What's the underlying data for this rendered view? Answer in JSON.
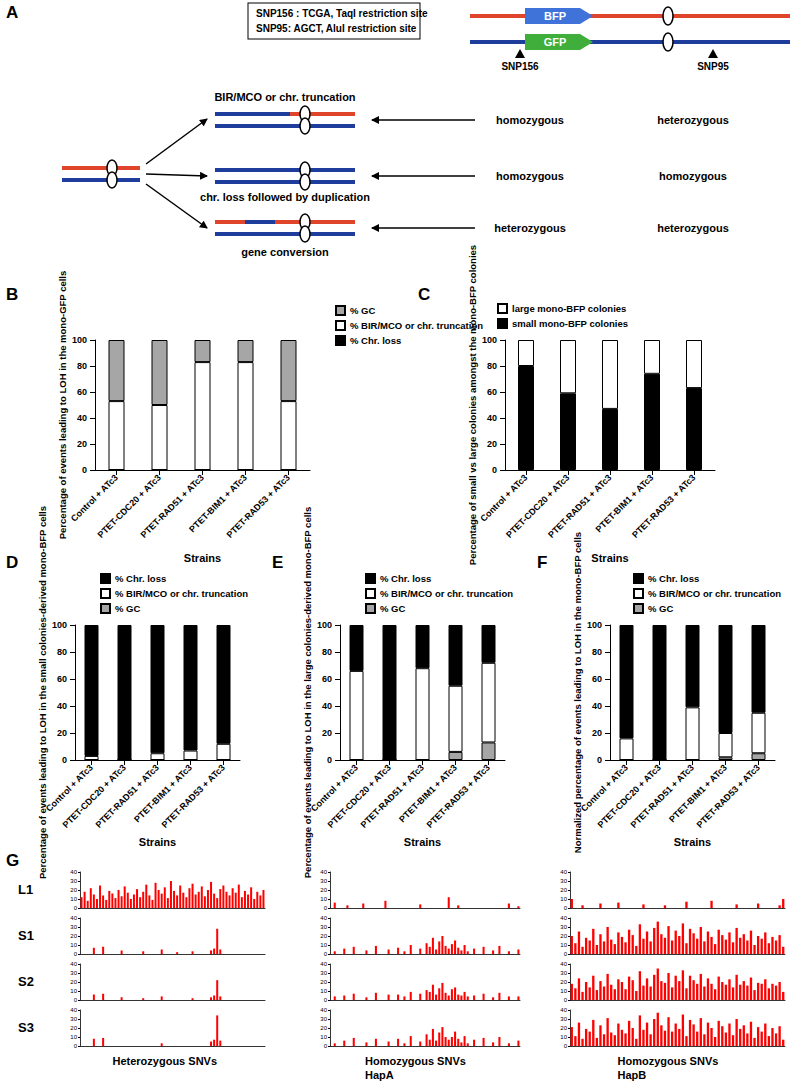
{
  "panel_a": {
    "panel": "A",
    "snp_box": [
      "SNP156 : TCGA, TaqI restriction site",
      "SNP95: AGCT, AluI restriction site"
    ],
    "colors": [
      "#e0452b",
      "#1f3d9c"
    ],
    "genes": [
      {
        "label": "BFP",
        "color": "#3f73d9"
      },
      {
        "label": "GFP",
        "color": "#3fae3a"
      }
    ],
    "snps": [
      "SNP156",
      "SNP95"
    ],
    "outcomes": [
      {
        "label": "BIR/MCO or chr. truncation",
        "top": [
          "#1f3d9c",
          "#e0452b"
        ],
        "snp156": "homozygous",
        "snp95": "heterozygous"
      },
      {
        "label": "chr. loss followed by duplication",
        "top": [
          "#1f3d9c"
        ],
        "snp156": "homozygous",
        "snp95": "homozygous"
      },
      {
        "label": "gene conversion",
        "top": [
          "#e0452b",
          "#1f3d9c",
          "#e0452b"
        ],
        "snp156": "heterozygous",
        "snp95": "heterozygous"
      }
    ]
  },
  "chart_data": [
    {
      "panel": "B",
      "type": "bar",
      "stacked": true,
      "ylabel": "Percentage of events leading to LOH in the mono-GFP cells",
      "xlabel": "Strains",
      "categories": [
        "Control + ATc3",
        "PTET-CDC20 + ATc3",
        "PTET-RAD51 + ATc3",
        "PTET-BIM1 + ATc3",
        "PTET-RAD53 + ATc3"
      ],
      "series": [
        {
          "name": "% Chr. loss",
          "color": "#000000",
          "values": [
            0,
            0,
            0,
            0,
            0
          ]
        },
        {
          "name": "% BIR/MCO or chr. truncation",
          "color": "#ffffff",
          "values": [
            53,
            50,
            83,
            83,
            53
          ]
        },
        {
          "name": "% GC",
          "color": "#a6a6a6",
          "values": [
            47,
            50,
            17,
            17,
            47
          ]
        }
      ],
      "ylim": [
        0,
        100
      ],
      "yticks": [
        0,
        20,
        40,
        60,
        80,
        100
      ],
      "grid": false,
      "legend": "top-right"
    },
    {
      "panel": "C",
      "type": "bar",
      "stacked": true,
      "ylabel": "Percentage of small vs large colonies amongst the mono-BFP colonies",
      "xlabel": "Strains",
      "categories": [
        "Control + ATc3",
        "PTET-CDC20 + ATc3",
        "PTET-RAD51 + ATc3",
        "PTET-BIM1 + ATc3",
        "PTET-RAD53 + ATc3"
      ],
      "series": [
        {
          "name": "small mono-BFP colonies",
          "color": "#000000",
          "values": [
            80,
            59,
            47,
            74,
            63
          ]
        },
        {
          "name": "large mono-BFP colonies",
          "color": "#ffffff",
          "values": [
            20,
            41,
            53,
            26,
            37
          ]
        }
      ],
      "ylim": [
        0,
        100
      ],
      "yticks": [
        0,
        20,
        40,
        60,
        80,
        100
      ],
      "grid": false,
      "legend": "top"
    },
    {
      "panel": "D",
      "type": "bar",
      "stacked": true,
      "ylabel": "Percentage of events leading to LOH in the small colonies-derived mono-BFP cells",
      "xlabel": "Strains",
      "categories": [
        "Control + ATc3",
        "PTET-CDC20 + ATc3",
        "PTET-RAD51 + ATc3",
        "PTET-BIM1 + ATc3",
        "PTET-RAD53 + ATc3"
      ],
      "series": [
        {
          "name": "% GC",
          "color": "#a6a6a6",
          "values": [
            0,
            0,
            0,
            0,
            0
          ]
        },
        {
          "name": "% BIR/MCO or chr. truncation",
          "color": "#ffffff",
          "values": [
            3,
            0,
            5,
            7,
            12
          ]
        },
        {
          "name": "% Chr. loss",
          "color": "#000000",
          "values": [
            97,
            100,
            95,
            93,
            88
          ]
        }
      ],
      "ylim": [
        0,
        100
      ],
      "yticks": [
        0,
        20,
        40,
        60,
        80,
        100
      ],
      "grid": false,
      "legend": "top"
    },
    {
      "panel": "E",
      "type": "bar",
      "stacked": true,
      "ylabel": "Percentage of events leading to LOH in the large colonies-derived mono-BFP cells",
      "xlabel": "Strains",
      "categories": [
        "Control + ATc3",
        "PTET-CDC20 + ATc3",
        "PTET-RAD51 + ATc3",
        "PTET-BIM1 + ATc3",
        "PTET-RAD53 + ATc3"
      ],
      "series": [
        {
          "name": "% GC",
          "color": "#a6a6a6",
          "values": [
            0,
            0,
            0,
            6,
            13
          ]
        },
        {
          "name": "% BIR/MCO or chr. truncation",
          "color": "#ffffff",
          "values": [
            66,
            0,
            68,
            49,
            59
          ]
        },
        {
          "name": "% Chr. loss",
          "color": "#000000",
          "values": [
            34,
            100,
            32,
            45,
            28
          ]
        }
      ],
      "ylim": [
        0,
        100
      ],
      "yticks": [
        0,
        20,
        40,
        60,
        80,
        100
      ],
      "grid": false,
      "legend": "top"
    },
    {
      "panel": "F",
      "type": "bar",
      "stacked": true,
      "ylabel": "Normalized percentage of events leading to LOH in the mono-BFP cells",
      "xlabel": "Strains",
      "categories": [
        "Control + ATc3",
        "PTET-CDC20 + ATc3",
        "PTET-RAD51 + ATc3",
        "PTET-BIM1 + ATc3",
        "PTET-RAD53 + ATc3"
      ],
      "series": [
        {
          "name": "% GC",
          "color": "#a6a6a6",
          "values": [
            0,
            0,
            0,
            2,
            5
          ]
        },
        {
          "name": "% BIR/MCO or chr. truncation",
          "color": "#ffffff",
          "values": [
            16,
            0,
            39,
            18,
            30
          ]
        },
        {
          "name": "% Chr. loss",
          "color": "#000000",
          "values": [
            84,
            100,
            61,
            80,
            65
          ]
        }
      ],
      "ylim": [
        0,
        100
      ],
      "yticks": [
        0,
        20,
        40,
        60,
        80,
        100
      ],
      "grid": false,
      "legend": "top"
    }
  ],
  "panel_g": {
    "panel": "G",
    "type": "bar",
    "color": "#ff0000",
    "ylim": [
      0,
      40
    ],
    "yticks": [
      0,
      10,
      20,
      30,
      40
    ],
    "tick_labels": "y",
    "columns": [
      "Heterozygous SNVs",
      "Homozygous SNVs HapA",
      "Homozygous SNVs HapB"
    ],
    "rows": [
      {
        "label": "L1",
        "tracks": [
          [
            12,
            18,
            8,
            22,
            15,
            10,
            25,
            14,
            9,
            19,
            16,
            11,
            20,
            13,
            24,
            17,
            10,
            15,
            21,
            12,
            18,
            26,
            14,
            9,
            28,
            20,
            16,
            23,
            11,
            30,
            19,
            14,
            25,
            17,
            12,
            22,
            27,
            15,
            18,
            24,
            13,
            20,
            29,
            16,
            11,
            21,
            25,
            18,
            14,
            22,
            17,
            26,
            12,
            19,
            15,
            23,
            10,
            18,
            14,
            20
          ],
          [
            0,
            6,
            0,
            0,
            0,
            3,
            0,
            0,
            0,
            0,
            5,
            0,
            0,
            0,
            0,
            0,
            0,
            8,
            0,
            0,
            0,
            0,
            0,
            0,
            0,
            0,
            0,
            0,
            4,
            0,
            0,
            0,
            0,
            0,
            0,
            0,
            0,
            12,
            0,
            0,
            3,
            0,
            0,
            0,
            0,
            0,
            0,
            0,
            0,
            0,
            0,
            0,
            0,
            0,
            0,
            0,
            5,
            0,
            0,
            2
          ],
          [
            10,
            0,
            0,
            3,
            0,
            0,
            0,
            0,
            5,
            0,
            0,
            0,
            0,
            6,
            0,
            0,
            0,
            0,
            0,
            0,
            4,
            0,
            0,
            0,
            0,
            0,
            3,
            0,
            0,
            0,
            0,
            0,
            7,
            0,
            0,
            0,
            0,
            0,
            0,
            8,
            0,
            0,
            0,
            0,
            0,
            0,
            4,
            0,
            0,
            0,
            0,
            0,
            5,
            0,
            0,
            0,
            0,
            0,
            3,
            10
          ]
        ]
      },
      {
        "label": "S1",
        "tracks": [
          [
            0,
            0,
            0,
            0,
            7,
            0,
            0,
            8,
            0,
            0,
            0,
            0,
            0,
            4,
            0,
            0,
            0,
            0,
            0,
            0,
            3,
            0,
            0,
            0,
            0,
            0,
            5,
            0,
            0,
            0,
            0,
            2,
            0,
            0,
            0,
            0,
            3,
            0,
            0,
            0,
            0,
            0,
            4,
            6,
            28,
            5,
            0,
            0,
            0,
            0,
            0,
            0,
            0,
            0,
            0,
            0,
            0,
            0,
            0,
            0
          ],
          [
            0,
            3,
            0,
            0,
            6,
            0,
            0,
            8,
            0,
            0,
            0,
            4,
            0,
            0,
            9,
            0,
            0,
            0,
            5,
            0,
            0,
            7,
            0,
            3,
            0,
            10,
            0,
            0,
            6,
            0,
            12,
            8,
            18,
            5,
            14,
            20,
            9,
            6,
            11,
            15,
            7,
            4,
            10,
            3,
            0,
            6,
            0,
            0,
            8,
            0,
            0,
            4,
            0,
            9,
            0,
            0,
            3,
            0,
            0,
            5
          ],
          [
            20,
            12,
            25,
            8,
            18,
            15,
            28,
            10,
            22,
            14,
            30,
            16,
            11,
            24,
            19,
            13,
            27,
            21,
            9,
            33,
            17,
            25,
            14,
            29,
            36,
            22,
            18,
            31,
            15,
            26,
            20,
            34,
            12,
            28,
            23,
            17,
            30,
            14,
            25,
            19,
            11,
            27,
            21,
            16,
            24,
            13,
            29,
            18,
            22,
            15,
            26,
            10,
            20,
            17,
            24,
            12,
            19,
            15,
            21,
            8
          ]
        ]
      },
      {
        "label": "S2",
        "tracks": [
          [
            0,
            0,
            0,
            0,
            6,
            0,
            0,
            7,
            0,
            0,
            0,
            0,
            0,
            3,
            0,
            0,
            0,
            0,
            0,
            0,
            2,
            0,
            0,
            0,
            0,
            0,
            4,
            0,
            0,
            0,
            0,
            0,
            0,
            0,
            0,
            0,
            2,
            0,
            0,
            0,
            0,
            0,
            3,
            5,
            22,
            4,
            0,
            0,
            0,
            0,
            0,
            0,
            0,
            0,
            0,
            0,
            0,
            0,
            0,
            0
          ],
          [
            0,
            4,
            0,
            0,
            5,
            0,
            0,
            7,
            0,
            0,
            0,
            3,
            0,
            0,
            8,
            0,
            0,
            0,
            6,
            0,
            0,
            6,
            0,
            4,
            0,
            9,
            0,
            0,
            7,
            0,
            11,
            9,
            17,
            6,
            13,
            19,
            8,
            5,
            12,
            14,
            6,
            5,
            9,
            4,
            0,
            5,
            0,
            0,
            7,
            0,
            0,
            3,
            0,
            8,
            0,
            0,
            4,
            0,
            0,
            4
          ],
          [
            18,
            13,
            24,
            9,
            20,
            14,
            27,
            11,
            21,
            15,
            29,
            17,
            12,
            23,
            20,
            12,
            26,
            22,
            10,
            32,
            16,
            24,
            15,
            28,
            35,
            21,
            19,
            30,
            14,
            27,
            21,
            33,
            13,
            27,
            22,
            18,
            29,
            15,
            24,
            18,
            12,
            26,
            20,
            17,
            23,
            14,
            28,
            17,
            21,
            16,
            25,
            11,
            19,
            18,
            23,
            13,
            18,
            16,
            20,
            9
          ]
        ]
      },
      {
        "label": "S3",
        "tracks": [
          [
            0,
            0,
            0,
            0,
            8,
            0,
            0,
            9,
            0,
            0,
            0,
            0,
            0,
            0,
            0,
            0,
            0,
            0,
            0,
            0,
            0,
            0,
            0,
            0,
            0,
            0,
            3,
            0,
            0,
            0,
            0,
            0,
            0,
            0,
            0,
            0,
            0,
            0,
            0,
            0,
            0,
            0,
            5,
            7,
            34,
            6,
            0,
            0,
            0,
            0,
            0,
            0,
            0,
            0,
            0,
            0,
            0,
            0,
            0,
            0
          ],
          [
            0,
            3,
            0,
            0,
            6,
            0,
            0,
            9,
            0,
            0,
            0,
            4,
            0,
            0,
            8,
            0,
            0,
            0,
            5,
            0,
            0,
            8,
            0,
            3,
            0,
            11,
            0,
            0,
            5,
            0,
            13,
            7,
            19,
            6,
            15,
            21,
            10,
            7,
            10,
            16,
            8,
            4,
            11,
            3,
            0,
            7,
            0,
            0,
            9,
            0,
            0,
            4,
            0,
            10,
            0,
            0,
            3,
            0,
            0,
            6
          ],
          [
            21,
            11,
            26,
            8,
            19,
            16,
            29,
            9,
            23,
            13,
            31,
            15,
            12,
            25,
            18,
            14,
            28,
            20,
            8,
            34,
            18,
            26,
            13,
            30,
            37,
            23,
            17,
            32,
            16,
            25,
            19,
            35,
            11,
            29,
            24,
            16,
            31,
            13,
            26,
            20,
            10,
            28,
            22,
            15,
            25,
            12,
            30,
            19,
            23,
            14,
            27,
            9,
            21,
            16,
            25,
            11,
            20,
            14,
            22,
            7
          ]
        ]
      }
    ]
  }
}
